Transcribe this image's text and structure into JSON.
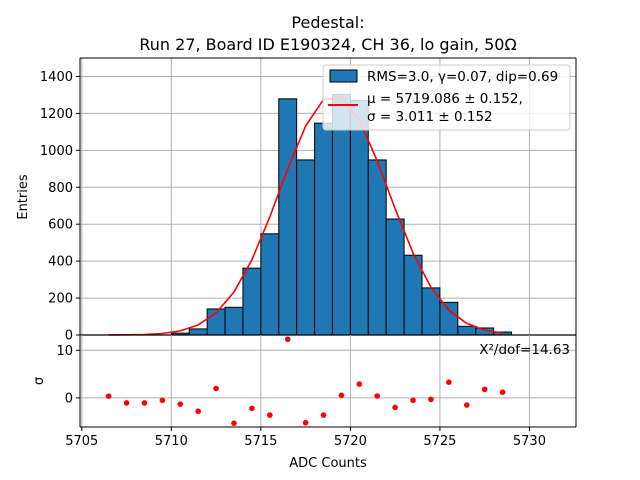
{
  "chart_data": [
    {
      "type": "bar",
      "panel": "histogram",
      "title_lines": [
        "Pedestal:",
        "Run 27, Board ID E190324, CH 36, lo gain, 50Ω"
      ],
      "xlabel": "",
      "ylabel": "Entries",
      "xlim": [
        5704.9,
        5732.6
      ],
      "ylim": [
        0,
        1500
      ],
      "yticks": [
        0,
        200,
        400,
        600,
        800,
        1000,
        1200,
        1400
      ],
      "xticks": [
        5705,
        5710,
        5715,
        5720,
        5725,
        5730
      ],
      "grid": true,
      "bins": {
        "edges_start": 5710,
        "width": 1,
        "values": [
          10,
          33,
          141,
          150,
          362,
          548,
          1279,
          948,
          1147,
          1302,
          1270,
          948,
          628,
          432,
          255,
          177,
          47,
          38,
          16
        ]
      },
      "bar_color": "#1f77b4",
      "fit": {
        "type": "gaussian",
        "mu": 5719.086,
        "sigma": 3.011,
        "amplitude": 1300,
        "x_start": 5706.5,
        "x_end": 5728.5,
        "step": 1,
        "color": "#ff0000"
      },
      "legend": {
        "placement": "top-right",
        "entries": [
          {
            "kind": "patch",
            "label": "RMS=3.0, γ=0.07, dip=0.69"
          },
          {
            "kind": "line",
            "label_lines": [
              "μ = 5719.086 ± 0.152,",
              "σ = 3.011 ± 0.152"
            ]
          }
        ]
      }
    },
    {
      "type": "scatter",
      "panel": "residuals",
      "xlabel": "ADC Counts",
      "ylabel": "σ",
      "xlim": [
        5704.9,
        5732.6
      ],
      "ylim": [
        -6.1,
        13.2
      ],
      "yticks": [
        0,
        10
      ],
      "xticks": [
        5705,
        5710,
        5715,
        5720,
        5725,
        5730
      ],
      "grid": true,
      "x": [
        5706.5,
        5707.5,
        5708.5,
        5709.5,
        5710.5,
        5711.5,
        5712.5,
        5713.5,
        5714.5,
        5715.5,
        5716.5,
        5717.5,
        5718.5,
        5719.5,
        5720.5,
        5721.5,
        5722.5,
        5723.5,
        5724.5,
        5725.5,
        5726.5,
        5727.5,
        5728.5
      ],
      "y": [
        0.36,
        -1.05,
        -1.05,
        -0.5,
        -1.3,
        -2.8,
        2.0,
        -5.3,
        -2.2,
        -3.6,
        12.3,
        -5.2,
        -3.6,
        0.55,
        2.9,
        0.4,
        -2.0,
        -0.5,
        -0.3,
        3.3,
        -1.5,
        1.8,
        1.2
      ],
      "point_color": "#ff0000",
      "annotation": "X²/dof=14.63",
      "annotation_placement": "top-right"
    }
  ]
}
